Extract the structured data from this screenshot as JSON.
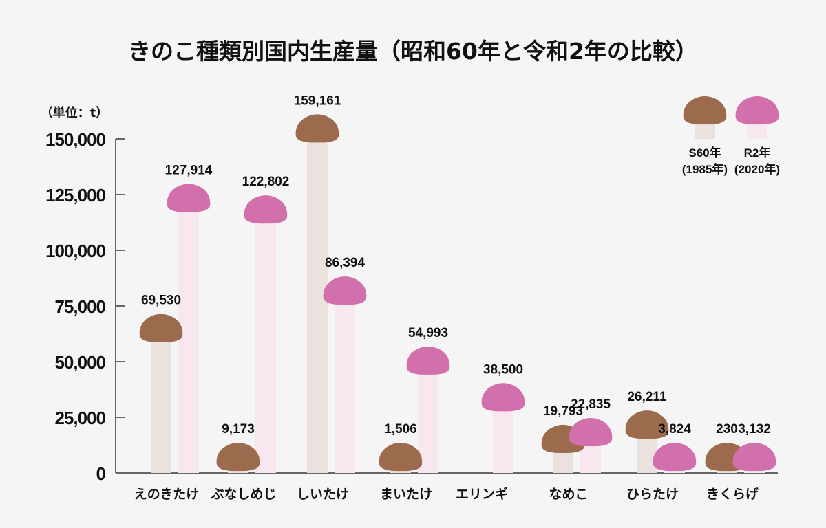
{
  "chart_data": {
    "type": "bar",
    "title": "きのこ種類別国内生産量（昭和60年と令和2年の比較）",
    "ylabel": "（単位：t）",
    "xlabel": "",
    "ylim": [
      0,
      150000
    ],
    "yticks": [
      "0",
      "25,000",
      "50,000",
      "75,000",
      "100,000",
      "125,000",
      "150,000"
    ],
    "ytick_values": [
      0,
      25000,
      50000,
      75000,
      100000,
      125000,
      150000
    ],
    "grid": false,
    "legend_position": "top-right",
    "categories": [
      "えのきたけ",
      "ぶなしめじ",
      "しいたけ",
      "まいたけ",
      "エリンギ",
      "なめこ",
      "ひらたけ",
      "きくらげ"
    ],
    "series": [
      {
        "name": "S60年\n(1985年)",
        "name_line1": "S60年",
        "name_line2": "(1985年)",
        "cap_color": "#9c6b4e",
        "stem_color": "#ebe1dd",
        "values": [
          69530,
          9173,
          159161,
          1506,
          null,
          19793,
          26211,
          230
        ],
        "labels": [
          "69,530",
          "9,173",
          "159,161",
          "1,506",
          "",
          "19,793",
          "26,211",
          "230"
        ]
      },
      {
        "name": "R2年\n(2020年)",
        "name_line1": "R2年",
        "name_line2": "(2020年)",
        "cap_color": "#d170ad",
        "stem_color": "#f8e7ee",
        "values": [
          127914,
          122802,
          86394,
          54993,
          38500,
          22835,
          3824,
          3132
        ],
        "labels": [
          "127,914",
          "122,802",
          "86,394",
          "54,993",
          "38,500",
          "22,835",
          "3,824",
          "3,132"
        ]
      }
    ]
  }
}
